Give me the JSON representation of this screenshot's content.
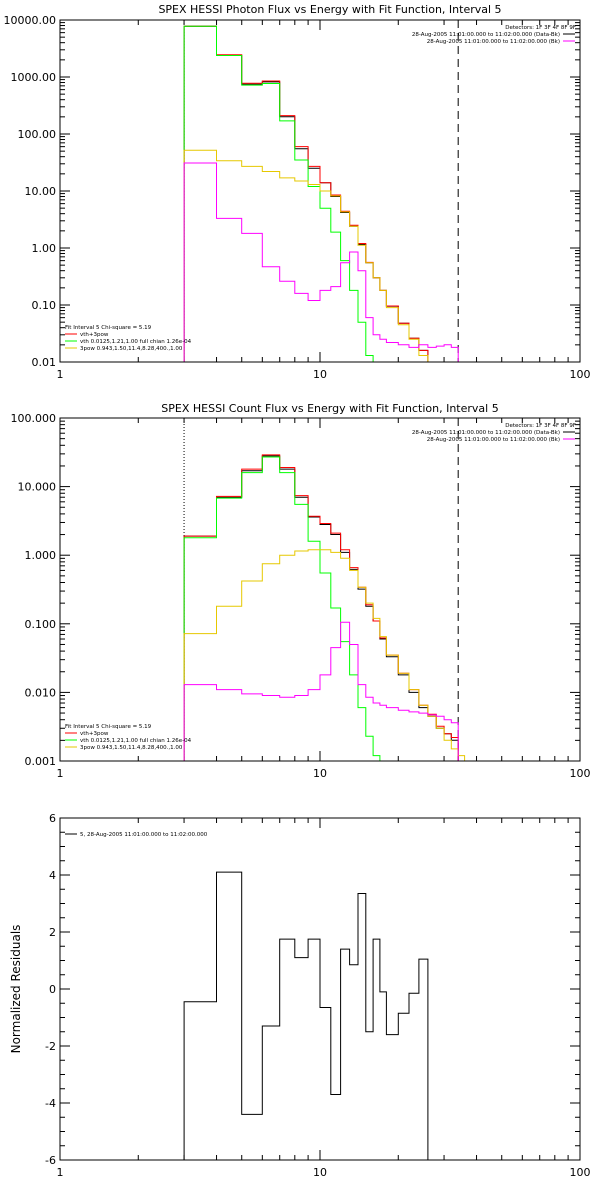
{
  "chart_data": [
    {
      "type": "line",
      "title": "SPEX HESSI Photon Flux vs Energy with Fit Function, Interval 5",
      "xscale": "log",
      "yscale": "log",
      "xlim": [
        1,
        100
      ],
      "ylim": [
        0.01,
        10000
      ],
      "xticks": [
        1,
        10,
        100
      ],
      "xtick_labels": [
        "1",
        "10",
        "100"
      ],
      "yticks": [
        0.01,
        0.1,
        1,
        10,
        100,
        1000,
        10000
      ],
      "ytick_labels": [
        "0.01",
        "0.10",
        "1.00",
        "10.00",
        "100.00",
        "1000.00",
        "10000.00"
      ],
      "vlines": [
        {
          "x": 3,
          "style": "dotted",
          "color": "#000000"
        },
        {
          "x": 34,
          "style": "dashed",
          "color": "#000000"
        }
      ],
      "legend_top_right": [
        {
          "text": "Detectors: 1F 3F 4F 8F 9F",
          "color": ""
        },
        {
          "text": "28-Aug-2005 11:01:00.000 to 11:02:00.000 (Data-Bk)",
          "color": "#000000"
        },
        {
          "text": "28-Aug-2005 11:01:00.000 to 11:02:00.000 (Bk)",
          "color": "#ff00ff"
        }
      ],
      "legend_bottom_left": [
        {
          "text": "Fit Interval 5   Chi-square = 5.19",
          "color": ""
        },
        {
          "text": "vth+3pow",
          "color": "#ff0000"
        },
        {
          "text": "vth 0.0125,1.21,1.00  full chian 1.26e-04",
          "color": "#00ff00"
        },
        {
          "text": "3pow 0.943,1.50,11.4,8.28,400.,1.00",
          "color": "#e6c800"
        }
      ],
      "edges": [
        3,
        4,
        5,
        6,
        7,
        8,
        9,
        10,
        11,
        12,
        13,
        14,
        15,
        16,
        17,
        18,
        20,
        22,
        24,
        26,
        28,
        30,
        32,
        34
      ],
      "series": [
        {
          "name": "Data-Bk",
          "color": "#000000",
          "values": [
            7800,
            2400,
            750,
            820,
            200,
            55,
            25,
            14,
            8,
            4.2,
            2.4,
            1.15,
            0.55,
            0.3,
            0.18,
            0.095,
            0.048,
            0.026,
            0.016
          ]
        },
        {
          "name": "vth+3pow",
          "color": "#ff0000",
          "values": [
            7800,
            2450,
            780,
            850,
            210,
            60,
            27,
            14,
            8.5,
            4.4,
            2.5,
            1.2,
            0.56,
            0.3,
            0.18,
            0.096,
            0.048,
            0.026,
            0.016
          ]
        },
        {
          "name": "vth",
          "color": "#00ff00",
          "values": [
            7800,
            2380,
            720,
            770,
            170,
            35,
            12,
            5.0,
            1.9,
            0.6,
            0.18,
            0.05,
            0.013
          ]
        },
        {
          "name": "3pow",
          "color": "#e6c800",
          "values": [
            52,
            34,
            27,
            22,
            17,
            15,
            13,
            10,
            8.2,
            4.3,
            2.4,
            1.12,
            0.55,
            0.3,
            0.18,
            0.09,
            0.045,
            0.025,
            0.013
          ]
        },
        {
          "name": "Bk",
          "color": "#ff00ff",
          "values": [
            31,
            3.3,
            1.8,
            0.47,
            0.26,
            0.16,
            0.12,
            0.18,
            0.21,
            0.55,
            0.85,
            0.4,
            0.06,
            0.03,
            0.025,
            0.022,
            0.02,
            0.018,
            0.02,
            0.018,
            0.019,
            0.02,
            0.018
          ]
        }
      ]
    },
    {
      "type": "line",
      "title": "SPEX HESSI Count Flux vs Energy with Fit Function, Interval 5",
      "xscale": "log",
      "yscale": "log",
      "xlim": [
        1,
        100
      ],
      "ylim": [
        0.001,
        100
      ],
      "xticks": [
        1,
        10,
        100
      ],
      "xtick_labels": [
        "1",
        "10",
        "100"
      ],
      "yticks": [
        0.001,
        0.01,
        0.1,
        1,
        10,
        100
      ],
      "ytick_labels": [
        "0.001",
        "0.010",
        "0.100",
        "1.000",
        "10.000",
        "100.000"
      ],
      "vlines": [
        {
          "x": 3,
          "style": "dotted",
          "color": "#000000"
        },
        {
          "x": 34,
          "style": "dashed",
          "color": "#000000"
        }
      ],
      "legend_top_right": [
        {
          "text": "Detectors: 1F 3F 4F 8F 9F",
          "color": ""
        },
        {
          "text": "28-Aug-2005 11:01:00.000 to 11:02:00.000 (Data-Bk)",
          "color": "#000000"
        },
        {
          "text": "28-Aug-2005 11:01:00.000 to 11:02:00.000 (Bk)",
          "color": "#ff00ff"
        }
      ],
      "legend_bottom_left": [
        {
          "text": "Fit Interval 5   Chi-square = 5.19",
          "color": ""
        },
        {
          "text": "vth+3pow",
          "color": "#ff0000"
        },
        {
          "text": "vth 0.0125,1.21,1.00  full chian 1.26e-04",
          "color": "#00ff00"
        },
        {
          "text": "3pow 0.943,1.50,11.4,8.28,400.,1.00",
          "color": "#e6c800"
        }
      ],
      "edges": [
        3,
        4,
        5,
        6,
        7,
        8,
        9,
        10,
        11,
        12,
        13,
        14,
        15,
        16,
        17,
        18,
        20,
        22,
        24,
        26,
        28,
        30,
        32,
        34,
        36,
        38
      ],
      "series": [
        {
          "name": "Data-Bk",
          "color": "#000000",
          "values": [
            1.9,
            7.0,
            17,
            28,
            18,
            7.0,
            3.6,
            2.8,
            2.0,
            1.1,
            0.62,
            0.32,
            0.18,
            0.11,
            0.06,
            0.033,
            0.018,
            0.01,
            0.006,
            0.0045,
            0.003,
            0.0025,
            0.002
          ]
        },
        {
          "name": "vth+3pow",
          "color": "#ff0000",
          "values": [
            1.9,
            7.2,
            18,
            29,
            19,
            7.4,
            3.7,
            2.9,
            2.1,
            1.2,
            0.66,
            0.34,
            0.19,
            0.11,
            0.062,
            0.035,
            0.019,
            0.011,
            0.0065,
            0.0048,
            0.0032,
            0.0025,
            0.0022
          ]
        },
        {
          "name": "vth",
          "color": "#00ff00",
          "values": [
            1.8,
            6.8,
            16,
            27,
            16,
            5.5,
            1.6,
            0.55,
            0.17,
            0.055,
            0.018,
            0.006,
            0.0023,
            0.0012
          ]
        },
        {
          "name": "3pow",
          "color": "#e6c800",
          "values": [
            0.072,
            0.18,
            0.42,
            0.75,
            1.0,
            1.15,
            1.2,
            1.2,
            1.1,
            0.9,
            0.6,
            0.34,
            0.2,
            0.12,
            0.065,
            0.035,
            0.019,
            0.011,
            0.0065,
            0.0045,
            0.003,
            0.002,
            0.0015,
            0.0012,
            0.001
          ]
        },
        {
          "name": "Bk",
          "color": "#ff00ff",
          "values": [
            0.013,
            0.011,
            0.0095,
            0.009,
            0.0085,
            0.009,
            0.011,
            0.018,
            0.045,
            0.105,
            0.05,
            0.013,
            0.0085,
            0.007,
            0.0065,
            0.006,
            0.0055,
            0.0052,
            0.005,
            0.0047,
            0.0045,
            0.004,
            0.0036
          ]
        }
      ]
    },
    {
      "type": "line",
      "title": "",
      "xscale": "log",
      "yscale": "linear",
      "xlim": [
        1,
        100
      ],
      "ylim": [
        -6,
        6
      ],
      "ylabel": "Normalized Residuals",
      "xticks": [
        1,
        10,
        100
      ],
      "xtick_labels": [
        "1",
        "10",
        "100"
      ],
      "yticks": [
        -6,
        -4,
        -2,
        0,
        2,
        4,
        6
      ],
      "ytick_labels": [
        "-6",
        "-4",
        "-2",
        "0",
        "2",
        "4",
        "6"
      ],
      "legend_top_left": [
        {
          "text": "5, 28-Aug-2005 11:01:00.000 to 11:02:00.000",
          "color": "#000000"
        }
      ],
      "edges": [
        3,
        4,
        5,
        6,
        7,
        8,
        9,
        10,
        11,
        12,
        13,
        14,
        15,
        16,
        17,
        18,
        20,
        22,
        24,
        26,
        28,
        30,
        32,
        34
      ],
      "series": [
        {
          "name": "5, 28-Aug-2005 11:01:00.000 to 11:02:00.000",
          "color": "#000000",
          "values": [
            -0.45,
            4.1,
            -4.4,
            -1.3,
            1.75,
            1.1,
            1.75,
            -0.65,
            -3.7,
            1.4,
            0.85,
            3.35,
            -1.5,
            1.75,
            -0.1,
            -1.6,
            -0.85,
            -0.15,
            1.05
          ]
        }
      ]
    }
  ]
}
